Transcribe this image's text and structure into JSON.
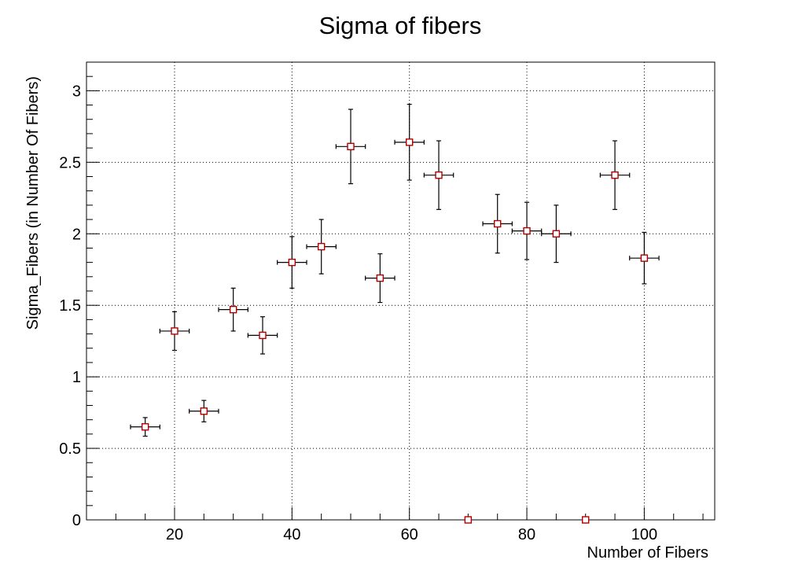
{
  "chart_data": {
    "type": "scatter",
    "title": "Sigma of fibers",
    "xlabel": "Number of Fibers",
    "ylabel": "Sigma_Fibers (in Number Of Fibers)",
    "xlim": [
      5,
      112
    ],
    "ylim": [
      0,
      3.2
    ],
    "x_ticks": [
      20,
      40,
      60,
      80,
      100
    ],
    "y_ticks": [
      0,
      0.5,
      1,
      1.5,
      2,
      2.5,
      3
    ],
    "x_tick_labels": [
      "20",
      "40",
      "60",
      "80",
      "100"
    ],
    "y_tick_labels": [
      "0",
      "0.5",
      "1",
      "1.5",
      "2",
      "2.5",
      "3"
    ],
    "grid": true,
    "marker_color": "#b00000",
    "points": [
      {
        "x": 15,
        "y": 0.65,
        "xerr": 2.5,
        "yerr": 0.065
      },
      {
        "x": 20,
        "y": 1.32,
        "xerr": 2.5,
        "yerr": 0.135
      },
      {
        "x": 25,
        "y": 0.76,
        "xerr": 2.5,
        "yerr": 0.075
      },
      {
        "x": 30,
        "y": 1.47,
        "xerr": 2.5,
        "yerr": 0.15
      },
      {
        "x": 35,
        "y": 1.29,
        "xerr": 2.5,
        "yerr": 0.13
      },
      {
        "x": 40,
        "y": 1.8,
        "xerr": 2.5,
        "yerr": 0.18
      },
      {
        "x": 45,
        "y": 1.91,
        "xerr": 2.5,
        "yerr": 0.19
      },
      {
        "x": 50,
        "y": 2.61,
        "xerr": 2.5,
        "yerr": 0.26
      },
      {
        "x": 55,
        "y": 1.69,
        "xerr": 2.5,
        "yerr": 0.17
      },
      {
        "x": 60,
        "y": 2.64,
        "xerr": 2.5,
        "yerr": 0.265
      },
      {
        "x": 65,
        "y": 2.41,
        "xerr": 2.5,
        "yerr": 0.24
      },
      {
        "x": 70,
        "y": 0.0,
        "xerr": 0,
        "yerr": 0
      },
      {
        "x": 75,
        "y": 2.07,
        "xerr": 2.5,
        "yerr": 0.205
      },
      {
        "x": 80,
        "y": 2.02,
        "xerr": 2.5,
        "yerr": 0.2
      },
      {
        "x": 85,
        "y": 2.0,
        "xerr": 2.5,
        "yerr": 0.2
      },
      {
        "x": 90,
        "y": 0.0,
        "xerr": 0,
        "yerr": 0
      },
      {
        "x": 95,
        "y": 2.41,
        "xerr": 2.5,
        "yerr": 0.24
      },
      {
        "x": 100,
        "y": 1.83,
        "xerr": 2.5,
        "yerr": 0.18
      }
    ]
  }
}
